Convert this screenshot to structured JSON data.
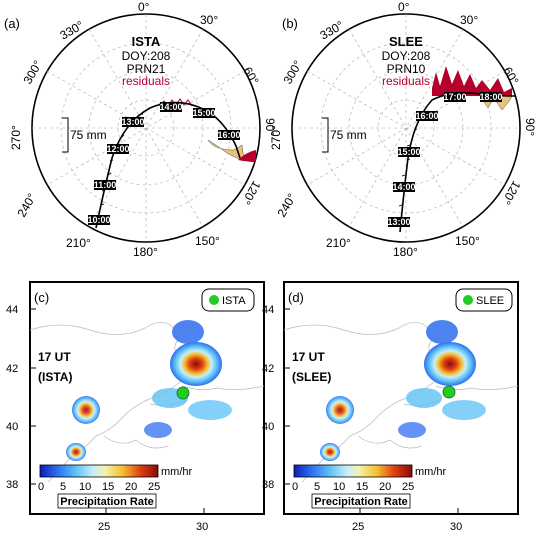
{
  "panels": {
    "a": {
      "letter": "(a)",
      "station": "ISTA",
      "doy": "DOY:208",
      "prn": "PRN21",
      "residuals": "residuals",
      "scale": "75 mm",
      "times": [
        "10:00",
        "11:00",
        "12:00",
        "13:00",
        "14:00",
        "15:00",
        "16:00"
      ]
    },
    "b": {
      "letter": "(b)",
      "station": "SLEE",
      "doy": "DOY:208",
      "prn": "PRN10",
      "residuals": "residuals",
      "scale": "75 mm",
      "times": [
        "13:00",
        "14:00",
        "15:00",
        "16:00",
        "17:00",
        "18:00"
      ]
    },
    "c": {
      "letter": "(c)",
      "legend": "ISTA",
      "time": "17 UT",
      "station": "(ISTA)"
    },
    "d": {
      "letter": "(d)",
      "legend": "SLEE",
      "time": "17 UT",
      "station": "(SLEE)"
    }
  },
  "azimuth_labels": [
    "0°",
    "30°",
    "60°",
    "90°",
    "120°",
    "150°",
    "180°",
    "210°",
    "240°",
    "270°",
    "300°",
    "330°"
  ],
  "colorbar": {
    "ticks": [
      "0",
      "5",
      "10",
      "15",
      "20",
      "25"
    ],
    "unit": "mm/hr",
    "title": "Precipitation Rate"
  },
  "map_axes": {
    "lat": [
      "44",
      "42",
      "40",
      "38"
    ],
    "lon": [
      "25",
      "30"
    ]
  },
  "colors": {
    "residual": "#b5002e",
    "residual_fill": "#e8c27a",
    "station_marker": "#22cc22"
  }
}
